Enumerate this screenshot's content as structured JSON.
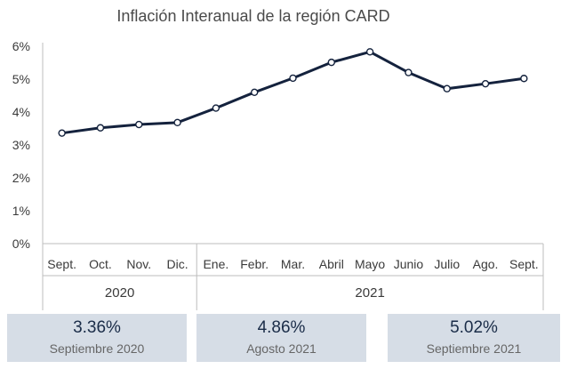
{
  "chart_data": {
    "type": "line",
    "title": "Inflación Interanual de la región CARD",
    "categories": [
      "Sept.",
      "Oct.",
      "Nov.",
      "Dic.",
      "Ene.",
      "Febr.",
      "Mar.",
      "Abril",
      "Mayo",
      "Junio",
      "Julio",
      "Ago.",
      "Sept."
    ],
    "groups": [
      {
        "label": "2020",
        "count": 4
      },
      {
        "label": "2021",
        "count": 9
      }
    ],
    "series": [
      {
        "values": [
          3.36,
          3.52,
          3.62,
          3.68,
          4.12,
          4.6,
          5.03,
          5.51,
          5.83,
          5.2,
          4.71,
          4.86,
          5.02
        ]
      }
    ],
    "yticks": [
      "0%",
      "1%",
      "2%",
      "3%",
      "4%",
      "5%",
      "6%"
    ],
    "ylim": [
      0,
      6
    ],
    "grid": false,
    "line_color": "#14223d",
    "marker_fill": "#ffffff"
  },
  "cards": [
    {
      "value": "3.36%",
      "label": "Septiembre 2020"
    },
    {
      "value": "4.86%",
      "label": "Agosto 2021"
    },
    {
      "value": "5.02%",
      "label": "Septiembre 2021"
    }
  ]
}
